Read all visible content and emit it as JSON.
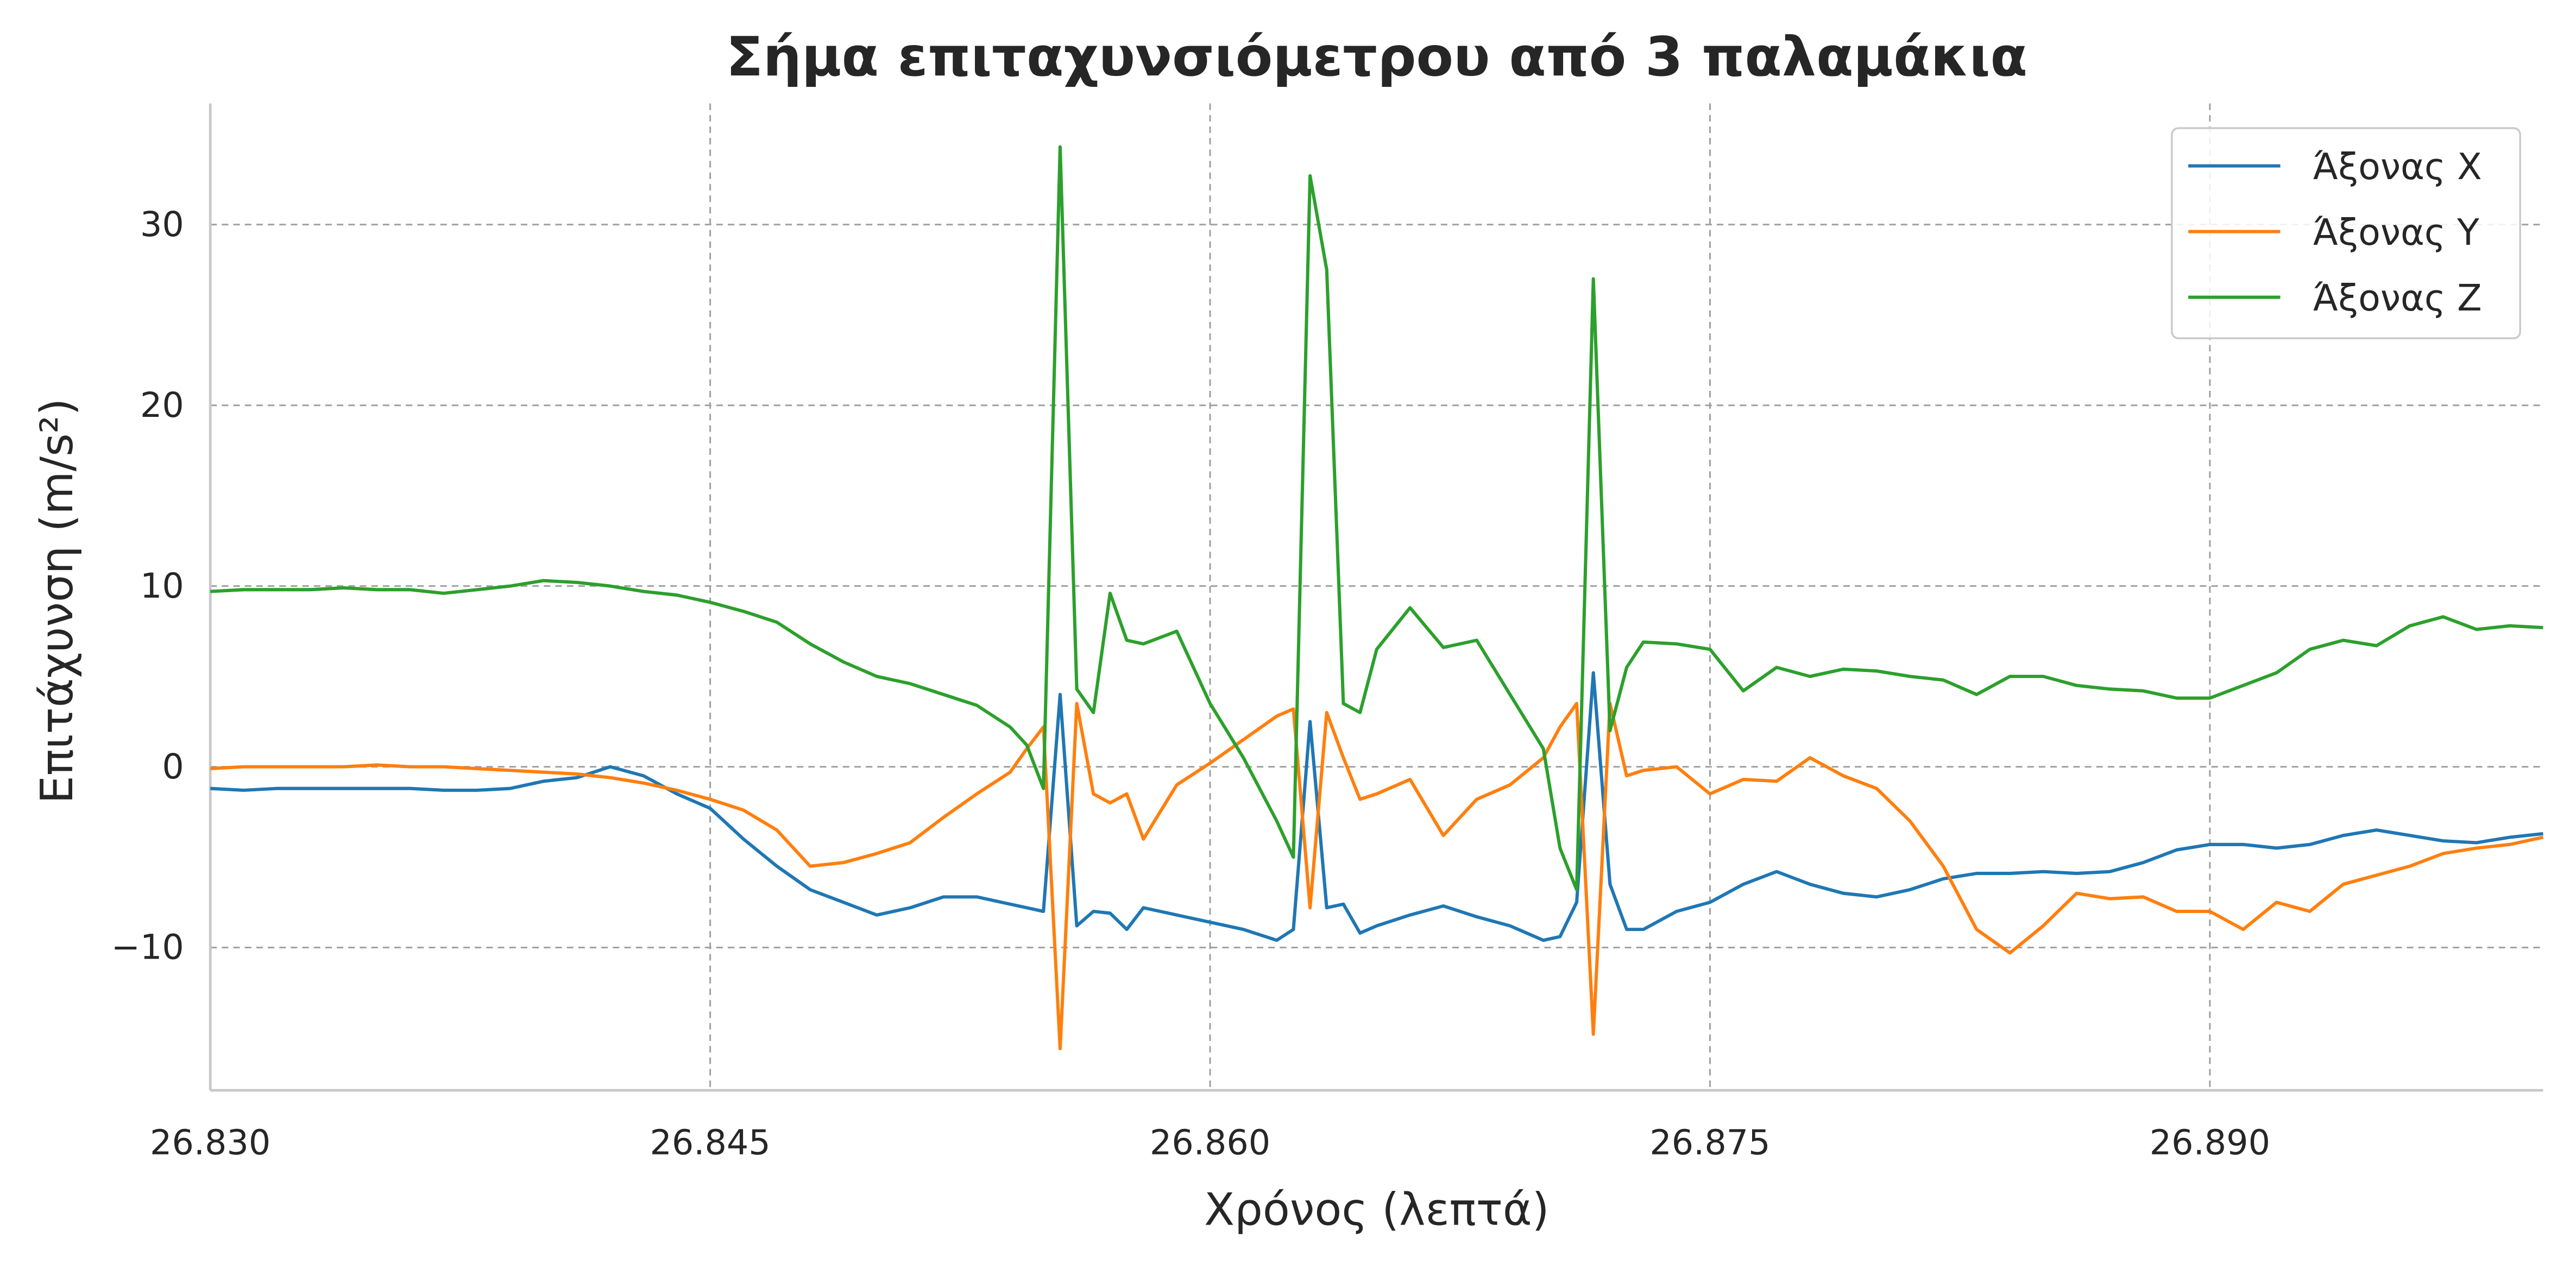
{
  "chart_data": {
    "type": "line",
    "title": "Σήμα επιταχυνσιόμετρου από 3 παλαμάκια",
    "x_label": "Χρόνος (λεπτά)",
    "y_label": "Επιτάχυνση (m/s²)",
    "x": [
      26.83,
      26.831,
      26.832,
      26.833,
      26.834,
      26.835,
      26.836,
      26.837,
      26.838,
      26.839,
      26.84,
      26.841,
      26.842,
      26.843,
      26.844,
      26.845,
      26.846,
      26.847,
      26.848,
      26.849,
      26.85,
      26.851,
      26.852,
      26.853,
      26.854,
      26.8545,
      26.855,
      26.8555,
      26.856,
      26.8565,
      26.857,
      26.8575,
      26.858,
      26.859,
      26.86,
      26.861,
      26.862,
      26.8625,
      26.863,
      26.8635,
      26.864,
      26.8645,
      26.865,
      26.866,
      26.867,
      26.868,
      26.869,
      26.87,
      26.8705,
      26.871,
      26.8715,
      26.872,
      26.8725,
      26.873,
      26.874,
      26.875,
      26.876,
      26.877,
      26.878,
      26.879,
      26.88,
      26.881,
      26.882,
      26.883,
      26.884,
      26.885,
      26.886,
      26.887,
      26.888,
      26.889,
      26.89,
      26.891,
      26.892,
      26.893,
      26.894,
      26.895,
      26.896,
      26.897,
      26.898,
      26.899,
      26.9
    ],
    "series": [
      {
        "name": "Άξονας X",
        "color": "#1f77b4",
        "values": [
          -1.2,
          -1.3,
          -1.2,
          -1.2,
          -1.2,
          -1.2,
          -1.2,
          -1.3,
          -1.3,
          -1.2,
          -0.8,
          -0.6,
          0.0,
          -0.5,
          -1.5,
          -2.3,
          -4.0,
          -5.5,
          -6.8,
          -7.5,
          -8.2,
          -7.8,
          -7.2,
          -7.2,
          -7.6,
          -7.8,
          -8.0,
          4.0,
          -8.8,
          -8.0,
          -8.1,
          -9.0,
          -7.8,
          -8.2,
          -8.6,
          -9.0,
          -9.6,
          -9.0,
          2.5,
          -7.8,
          -7.6,
          -9.2,
          -8.8,
          -8.2,
          -7.7,
          -8.3,
          -8.8,
          -9.6,
          -9.4,
          -7.5,
          5.2,
          -6.5,
          -9.0,
          -9.0,
          -8.0,
          -7.5,
          -6.5,
          -5.8,
          -6.5,
          -7.0,
          -7.2,
          -6.8,
          -6.2,
          -5.9,
          -5.9,
          -5.8,
          -5.9,
          -5.8,
          -5.3,
          -4.6,
          -4.3,
          -4.3,
          -4.5,
          -4.3,
          -3.8,
          -3.5,
          -3.8,
          -4.1,
          -4.2,
          -3.9,
          -3.7
        ]
      },
      {
        "name": "Άξονας Y",
        "color": "#ff7f0e",
        "values": [
          -0.1,
          0.0,
          0.0,
          0.0,
          0.0,
          0.1,
          0.0,
          0.0,
          -0.1,
          -0.2,
          -0.3,
          -0.4,
          -0.6,
          -0.9,
          -1.3,
          -1.8,
          -2.4,
          -3.5,
          -5.5,
          -5.3,
          -4.8,
          -4.2,
          -2.8,
          -1.5,
          -0.3,
          1.0,
          2.2,
          -15.6,
          3.5,
          -1.5,
          -2.0,
          -1.5,
          -4.0,
          -1.0,
          0.2,
          1.5,
          2.8,
          3.2,
          -7.8,
          3.0,
          0.5,
          -1.8,
          -1.5,
          -0.7,
          -3.8,
          -1.8,
          -1.0,
          0.5,
          2.2,
          3.5,
          -14.8,
          3.5,
          -0.5,
          -0.2,
          0.0,
          -1.5,
          -0.7,
          -0.8,
          0.5,
          -0.5,
          -1.2,
          -3.0,
          -5.5,
          -9.0,
          -10.3,
          -8.8,
          -7.0,
          -7.3,
          -7.2,
          -8.0,
          -8.0,
          -9.0,
          -7.5,
          -8.0,
          -6.5,
          -6.0,
          -5.5,
          -4.8,
          -4.5,
          -4.3,
          -3.9
        ]
      },
      {
        "name": "Άξονας Z",
        "color": "#2ca02c",
        "values": [
          9.7,
          9.8,
          9.8,
          9.8,
          9.9,
          9.8,
          9.8,
          9.6,
          9.8,
          10.0,
          10.3,
          10.2,
          10.0,
          9.7,
          9.5,
          9.1,
          8.6,
          8.0,
          6.8,
          5.8,
          5.0,
          4.6,
          4.0,
          3.4,
          2.2,
          1.2,
          -1.2,
          34.3,
          4.3,
          3.0,
          9.6,
          7.0,
          6.8,
          7.5,
          3.5,
          0.5,
          -3.0,
          -5.0,
          32.7,
          27.5,
          3.5,
          3.0,
          6.5,
          8.8,
          6.6,
          7.0,
          4.0,
          1.0,
          -4.5,
          -6.8,
          27.0,
          2.0,
          5.5,
          6.9,
          6.8,
          6.5,
          4.2,
          5.5,
          5.0,
          5.4,
          5.3,
          5.0,
          4.8,
          4.0,
          5.0,
          5.0,
          4.5,
          4.3,
          4.2,
          3.8,
          3.8,
          4.5,
          5.2,
          6.5,
          7.0,
          6.7,
          7.8,
          8.3,
          7.6,
          7.8,
          7.7
        ]
      }
    ],
    "xlim": [
      26.83,
      26.9
    ],
    "ylim": [
      -17.9,
      36.7
    ],
    "xticks": [
      {
        "value": 26.83,
        "label": "26.830"
      },
      {
        "value": 26.845,
        "label": "26.845"
      },
      {
        "value": 26.86,
        "label": "26.860"
      },
      {
        "value": 26.875,
        "label": "26.875"
      },
      {
        "value": 26.89,
        "label": "26.890"
      }
    ],
    "yticks": [
      {
        "value": -10,
        "label": "−10"
      },
      0,
      10,
      20,
      30
    ],
    "grid": true,
    "legend": "upper-right"
  }
}
